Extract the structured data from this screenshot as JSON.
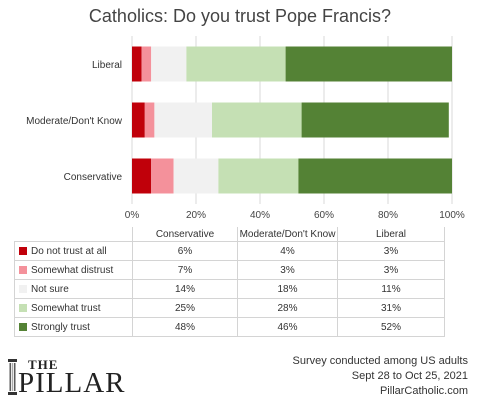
{
  "title": "Catholics: Do you trust Pope Francis?",
  "chart_data": {
    "type": "bar",
    "orientation": "horizontal",
    "stacked": true,
    "categories": [
      "Liberal",
      "Moderate/Don't Know",
      "Conservative"
    ],
    "xlim": [
      0,
      100
    ],
    "xticks": [
      "0%",
      "20%",
      "40%",
      "60%",
      "80%",
      "100%"
    ],
    "grid": true,
    "series": [
      {
        "name": "Do not trust at all",
        "color": "#c0000a",
        "values": [
          3,
          4,
          6
        ]
      },
      {
        "name": "Somewhat distrust",
        "color": "#f4919b",
        "values": [
          3,
          3,
          7
        ]
      },
      {
        "name": "Not sure",
        "color": "#f1f1f1",
        "values": [
          11,
          18,
          14
        ]
      },
      {
        "name": "Somewhat trust",
        "color": "#c5e0b4",
        "values": [
          31,
          28,
          25
        ]
      },
      {
        "name": "Strongly trust",
        "color": "#548235",
        "values": [
          52,
          46,
          48
        ]
      }
    ]
  },
  "table": {
    "columns": [
      "Conservative",
      "Moderate/Don't Know",
      "Liberal"
    ],
    "rows": [
      {
        "label": "Do not trust at all",
        "values": [
          "6%",
          "4%",
          "3%"
        ]
      },
      {
        "label": "Somewhat distrust",
        "values": [
          "7%",
          "3%",
          "3%"
        ]
      },
      {
        "label": "Not sure",
        "values": [
          "14%",
          "18%",
          "11%"
        ]
      },
      {
        "label": "Somewhat trust",
        "values": [
          "25%",
          "28%",
          "31%"
        ]
      },
      {
        "label": "Strongly trust",
        "values": [
          "48%",
          "46%",
          "52%"
        ]
      }
    ]
  },
  "logo": {
    "line1": "THE",
    "line2": "PILLAR",
    "colors": [
      "#5a5a5a",
      "#aaaaaa"
    ]
  },
  "footer": {
    "line1": "Survey conducted among US adults",
    "line2": "Sept 28 to Oct 25, 2021",
    "line3": "PillarCatholic.com"
  }
}
